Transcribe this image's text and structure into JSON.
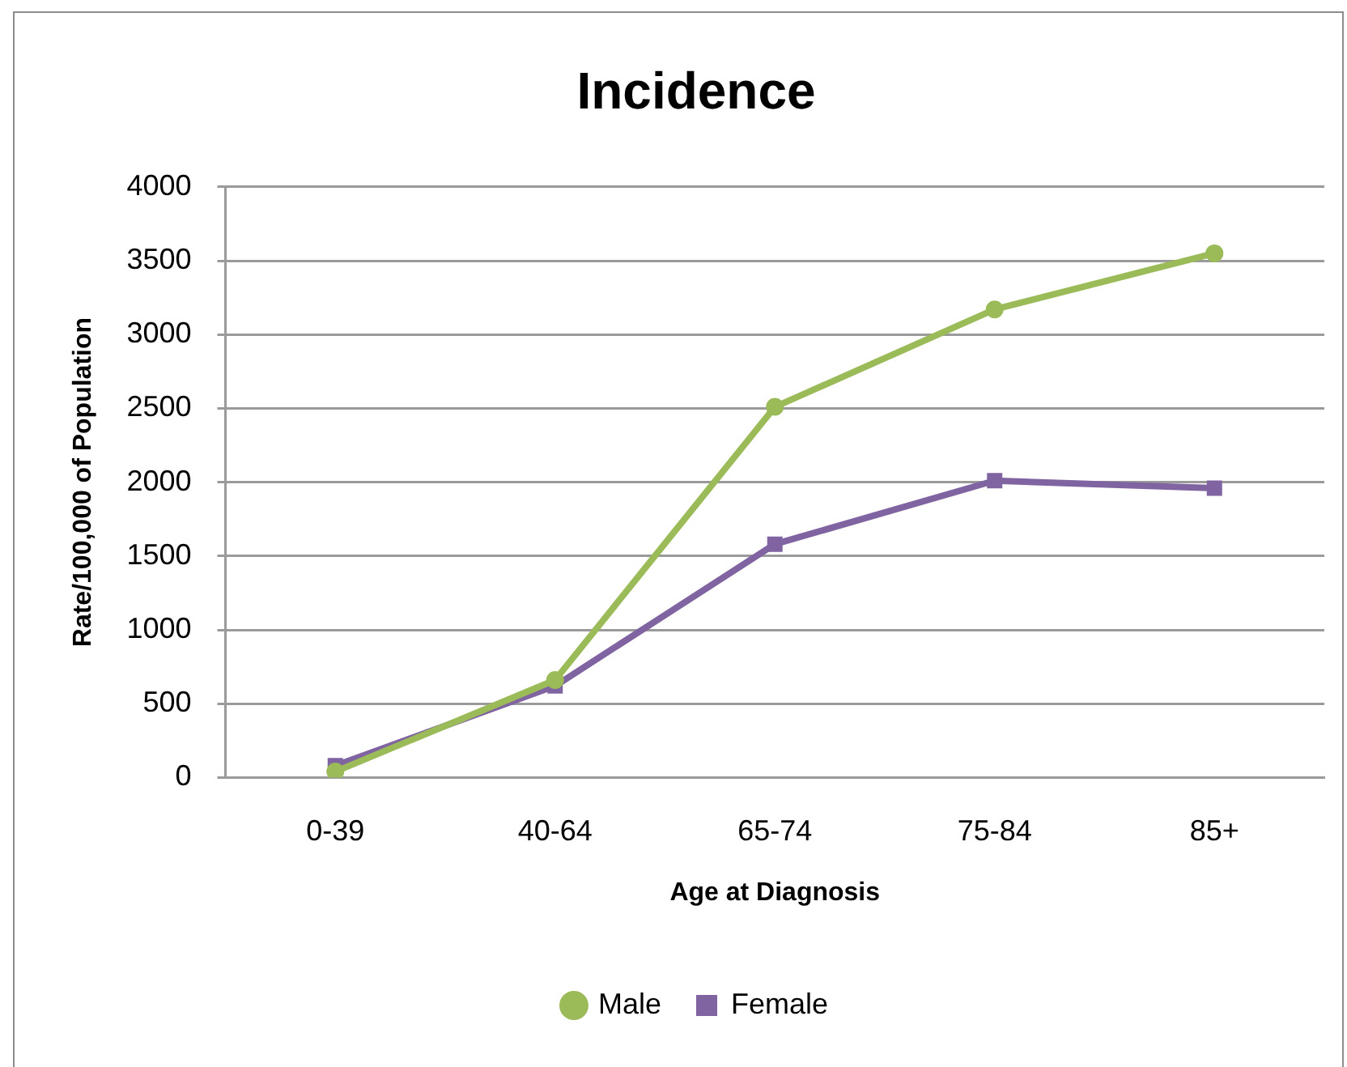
{
  "chart_data": {
    "type": "line",
    "title": "Incidence",
    "xlabel": "Age at Diagnosis",
    "ylabel": "Rate/100,000 of Population",
    "categories": [
      "0-39",
      "40-64",
      "65-74",
      "75-84",
      "85+"
    ],
    "series": [
      {
        "name": "Male",
        "color": "#9bbb59",
        "marker": "circle",
        "values": [
          40,
          660,
          2510,
          3170,
          3550
        ]
      },
      {
        "name": "Female",
        "color": "#8064a2",
        "marker": "square",
        "values": [
          80,
          620,
          1580,
          2010,
          1960
        ]
      }
    ],
    "ylim": [
      0,
      4000
    ],
    "yticks": [
      0,
      500,
      1000,
      1500,
      2000,
      2500,
      3000,
      3500,
      4000
    ],
    "grid": "y",
    "legend": "bottom",
    "line_style": "solid"
  }
}
